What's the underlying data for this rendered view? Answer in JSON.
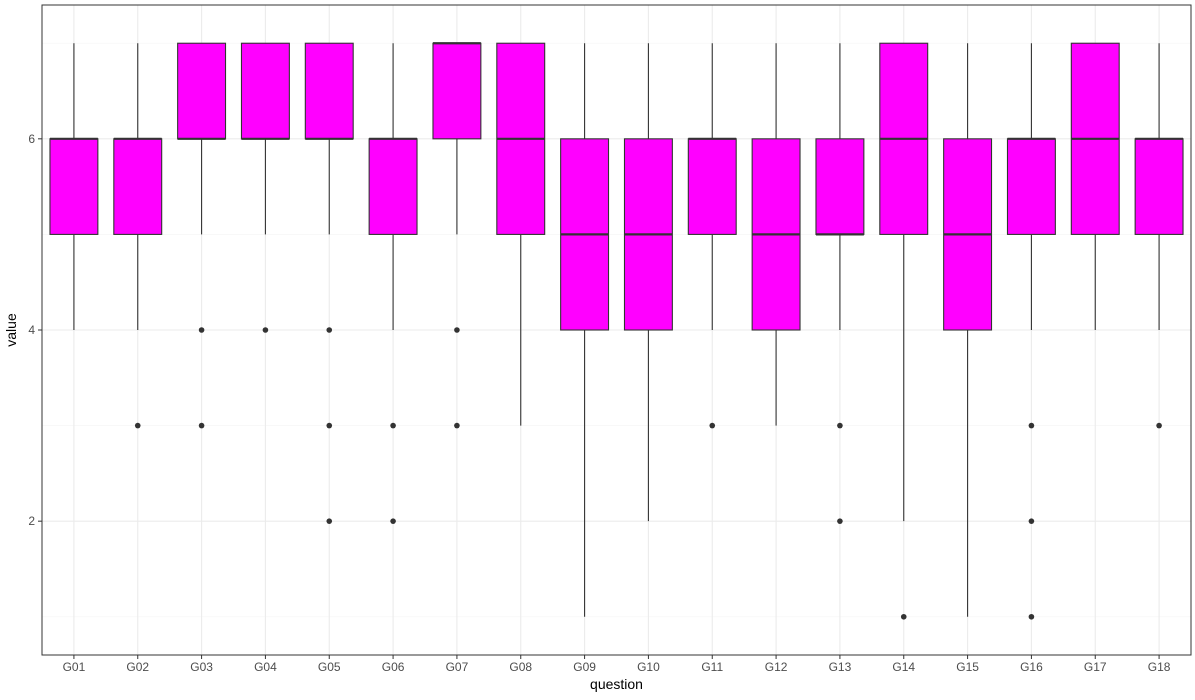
{
  "chart_data": {
    "type": "boxplot",
    "xlabel": "question",
    "ylabel": "value",
    "ylim": [
      0.6,
      7.4
    ],
    "yticks": [
      2,
      4,
      6
    ],
    "categories": [
      "G01",
      "G02",
      "G03",
      "G04",
      "G05",
      "G06",
      "G07",
      "G08",
      "G09",
      "G10",
      "G11",
      "G12",
      "G13",
      "G14",
      "G15",
      "G16",
      "G17",
      "G18"
    ],
    "boxes": [
      {
        "q1": 5,
        "median": 6,
        "q3": 6,
        "whisker_low": 4,
        "whisker_high": 7,
        "outliers": []
      },
      {
        "q1": 5,
        "median": 6,
        "q3": 6,
        "whisker_low": 4,
        "whisker_high": 7,
        "outliers": [
          3
        ]
      },
      {
        "q1": 6,
        "median": 6,
        "q3": 7,
        "whisker_low": 5,
        "whisker_high": 7,
        "outliers": [
          4,
          3
        ]
      },
      {
        "q1": 6,
        "median": 6,
        "q3": 7,
        "whisker_low": 5,
        "whisker_high": 7,
        "outliers": [
          4
        ]
      },
      {
        "q1": 6,
        "median": 6,
        "q3": 7,
        "whisker_low": 5,
        "whisker_high": 7,
        "outliers": [
          4,
          3,
          2
        ]
      },
      {
        "q1": 5,
        "median": 6,
        "q3": 6,
        "whisker_low": 4,
        "whisker_high": 7,
        "outliers": [
          3,
          2
        ]
      },
      {
        "q1": 6,
        "median": 7,
        "q3": 7,
        "whisker_low": 5,
        "whisker_high": 7,
        "outliers": [
          4,
          3
        ]
      },
      {
        "q1": 5,
        "median": 6,
        "q3": 7,
        "whisker_low": 3,
        "whisker_high": 7,
        "outliers": []
      },
      {
        "q1": 4,
        "median": 5,
        "q3": 6,
        "whisker_low": 1,
        "whisker_high": 7,
        "outliers": []
      },
      {
        "q1": 4,
        "median": 5,
        "q3": 6,
        "whisker_low": 2,
        "whisker_high": 7,
        "outliers": []
      },
      {
        "q1": 5,
        "median": 6,
        "q3": 6,
        "whisker_low": 4,
        "whisker_high": 7,
        "outliers": [
          3
        ]
      },
      {
        "q1": 4,
        "median": 5,
        "q3": 6,
        "whisker_low": 3,
        "whisker_high": 7,
        "outliers": []
      },
      {
        "q1": 5,
        "median": 5,
        "q3": 6,
        "whisker_low": 4,
        "whisker_high": 7,
        "outliers": [
          3,
          2
        ]
      },
      {
        "q1": 5,
        "median": 6,
        "q3": 7,
        "whisker_low": 2,
        "whisker_high": 7,
        "outliers": [
          1
        ]
      },
      {
        "q1": 4,
        "median": 5,
        "q3": 6,
        "whisker_low": 1,
        "whisker_high": 7,
        "outliers": []
      },
      {
        "q1": 5,
        "median": 6,
        "q3": 6,
        "whisker_low": 4,
        "whisker_high": 7,
        "outliers": [
          3,
          2,
          1
        ]
      },
      {
        "q1": 5,
        "median": 6,
        "q3": 7,
        "whisker_low": 4,
        "whisker_high": 7,
        "outliers": []
      },
      {
        "q1": 5,
        "median": 6,
        "q3": 6,
        "whisker_low": 4,
        "whisker_high": 7,
        "outliers": [
          3
        ]
      }
    ],
    "grid": true,
    "legend": "none",
    "colors": {
      "box_fill": "#ff00ff",
      "box_stroke": "#333333",
      "outlier": "#333333",
      "grid_major": "#ebebeb",
      "grid_minor": "#f5f5f5",
      "panel_border": "#333333",
      "tick_text": "#4d4d4d"
    }
  }
}
